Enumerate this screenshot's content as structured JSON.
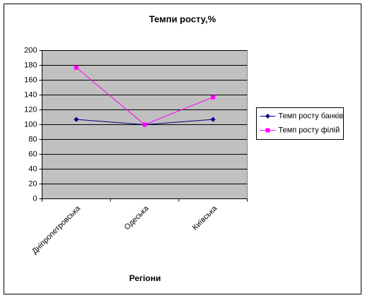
{
  "chart_data": {
    "type": "line",
    "title": "Темпи росту,%",
    "x_label": "Регіони",
    "categories": [
      "Дніпропетровська",
      "Одеська",
      "Київська"
    ],
    "series": [
      {
        "name": "Темп росту банків",
        "color": "#000080",
        "marker": "diamond",
        "values": [
          107,
          100,
          107
        ]
      },
      {
        "name": "Темп росту філій",
        "color": "#ff00ff",
        "marker": "square",
        "values": [
          177,
          100,
          137
        ]
      }
    ],
    "ylim": [
      0,
      200
    ],
    "yticks": [
      0,
      20,
      40,
      60,
      80,
      100,
      120,
      140,
      160,
      180,
      200
    ],
    "grid": true,
    "legend": "right",
    "plot_background": "#c0c0c0"
  }
}
